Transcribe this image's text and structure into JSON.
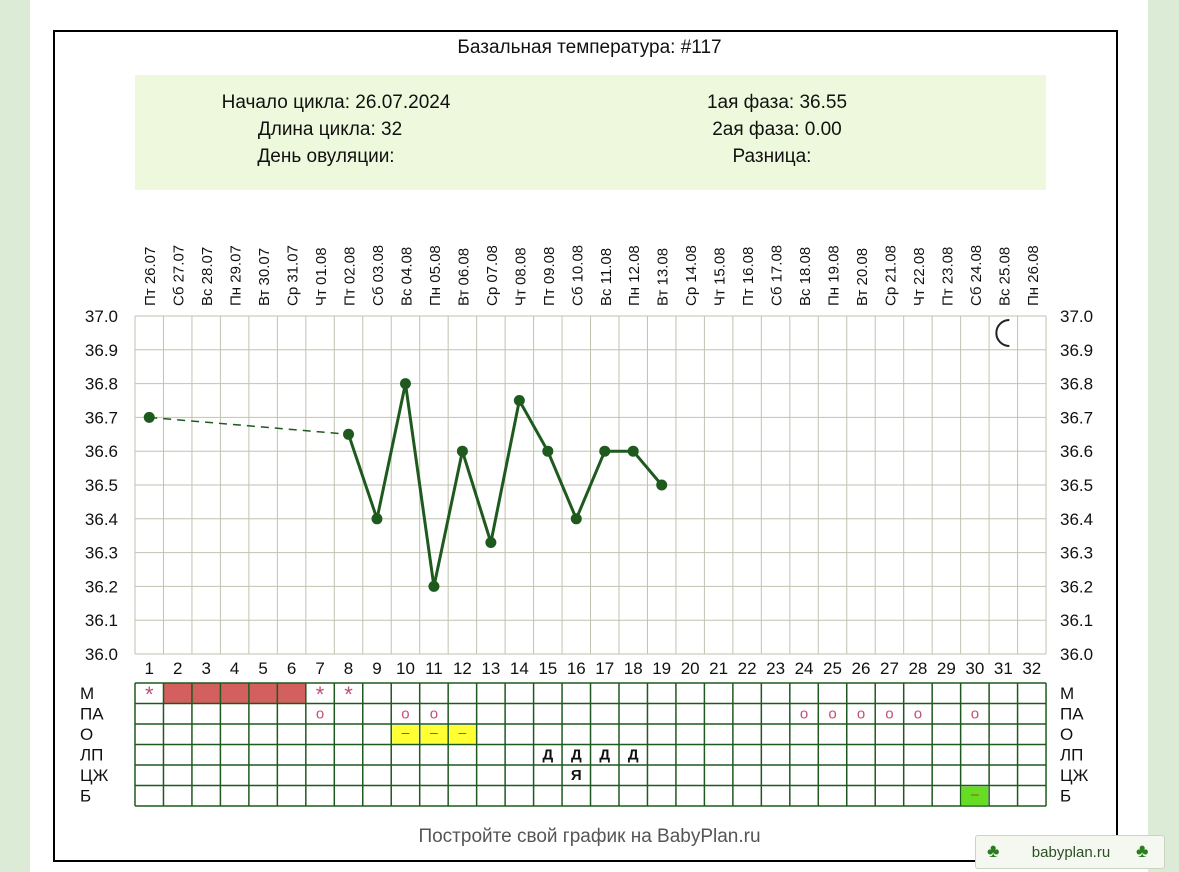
{
  "title": "Базальная температура: #117",
  "info": {
    "cycle_start": "Начало цикла: 26.07.2024",
    "cycle_length": "Длина цикла: 32",
    "ovulation_day": "День овуляции:",
    "phase1": "1ая фаза: 36.55",
    "phase2": "2ая фаза: 0.00",
    "difference": "Разница:"
  },
  "footer": "Постройте свой график на BabyPlan.ru",
  "badge": "babyplan.ru",
  "colors": {
    "line": "#1e5a1e",
    "grid": "#c2c2b0",
    "info_bg": "#eef8dc",
    "menstruation": "#d35f5f",
    "mark_pink": "#c05070",
    "ovulation_test": "#ffff33",
    "pregnancy_test": "#66dd22"
  },
  "chart_data": {
    "type": "line",
    "title": "Базальная температура: #117",
    "x": [
      1,
      2,
      3,
      4,
      5,
      6,
      7,
      8,
      9,
      10,
      11,
      12,
      13,
      14,
      15,
      16,
      17,
      18,
      19,
      20,
      21,
      22,
      23,
      24,
      25,
      26,
      27,
      28,
      29,
      30,
      31,
      32
    ],
    "dates": [
      "26.07",
      "27.07",
      "28.07",
      "29.07",
      "30.07",
      "31.07",
      "01.08",
      "02.08",
      "03.08",
      "04.08",
      "05.08",
      "06.08",
      "07.08",
      "08.08",
      "09.08",
      "10.08",
      "11.08",
      "12.08",
      "13.08",
      "14.08",
      "15.08",
      "16.08",
      "17.08",
      "18.08",
      "19.08",
      "20.08",
      "21.08",
      "22.08",
      "23.08",
      "24.08",
      "25.08",
      "26.08"
    ],
    "weekdays": [
      "Пт",
      "Сб",
      "Вс",
      "Пн",
      "Вт",
      "Ср",
      "Чт",
      "Пт",
      "Сб",
      "Вс",
      "Пн",
      "Вт",
      "Ср",
      "Чт",
      "Пт",
      "Сб",
      "Вс",
      "Пн",
      "Вт",
      "Ср",
      "Чт",
      "Пт",
      "Сб",
      "Вс",
      "Пн",
      "Вт",
      "Ср",
      "Чт",
      "Пт",
      "Сб",
      "Вс",
      "Пн"
    ],
    "y_ticks": [
      "37.0",
      "36.9",
      "36.8",
      "36.7",
      "36.6",
      "36.5",
      "36.4",
      "36.3",
      "36.2",
      "36.1",
      "36.0"
    ],
    "ylim": [
      36.0,
      37.0
    ],
    "series": [
      {
        "points": [
          [
            1,
            36.7
          ],
          [
            8,
            36.65
          ],
          [
            9,
            36.4
          ],
          [
            10,
            36.8
          ],
          [
            11,
            36.2
          ],
          [
            12,
            36.6
          ],
          [
            13,
            36.33
          ],
          [
            14,
            36.75
          ],
          [
            15,
            36.6
          ],
          [
            16,
            36.4
          ],
          [
            17,
            36.6
          ],
          [
            18,
            36.6
          ],
          [
            19,
            36.5
          ]
        ],
        "dashed_segments": [
          [
            1,
            8
          ]
        ]
      }
    ],
    "moon_icon_day": 31,
    "table_rows": [
      "М",
      "ПА",
      "О",
      "ЛП",
      "ЦЖ",
      "Б"
    ],
    "table_marks": [
      {
        "row": 0,
        "day": 1,
        "kind": "text",
        "text": "*"
      },
      {
        "row": 0,
        "day": 2,
        "kind": "fill",
        "to": 6
      },
      {
        "row": 0,
        "day": 7,
        "kind": "text",
        "text": "*"
      },
      {
        "row": 0,
        "day": 8,
        "kind": "text",
        "text": "*"
      },
      {
        "row": 1,
        "day": 7,
        "kind": "text",
        "text": "о"
      },
      {
        "row": 1,
        "day": 10,
        "kind": "text",
        "text": "о"
      },
      {
        "row": 1,
        "day": 11,
        "kind": "text",
        "text": "о"
      },
      {
        "row": 1,
        "day": 24,
        "kind": "text",
        "text": "о"
      },
      {
        "row": 1,
        "day": 25,
        "kind": "text",
        "text": "о"
      },
      {
        "row": 1,
        "day": 26,
        "kind": "text",
        "text": "о"
      },
      {
        "row": 1,
        "day": 27,
        "kind": "text",
        "text": "о"
      },
      {
        "row": 1,
        "day": 28,
        "kind": "text",
        "text": "о"
      },
      {
        "row": 1,
        "day": 30,
        "kind": "text",
        "text": "о"
      },
      {
        "row": 2,
        "day": 10,
        "kind": "box",
        "text": "–",
        "color": "#ffff33"
      },
      {
        "row": 2,
        "day": 11,
        "kind": "box",
        "text": "–",
        "color": "#ffff33"
      },
      {
        "row": 2,
        "day": 12,
        "kind": "box",
        "text": "–",
        "color": "#ffff33"
      },
      {
        "row": 3,
        "day": 15,
        "kind": "text",
        "text": "Д"
      },
      {
        "row": 3,
        "day": 16,
        "kind": "text",
        "text": "Д"
      },
      {
        "row": 3,
        "day": 17,
        "kind": "text",
        "text": "Д"
      },
      {
        "row": 3,
        "day": 18,
        "kind": "text",
        "text": "Д"
      },
      {
        "row": 4,
        "day": 16,
        "kind": "text",
        "text": "Я"
      },
      {
        "row": 5,
        "day": 30,
        "kind": "box",
        "text": "–",
        "color": "#66dd22"
      }
    ]
  }
}
